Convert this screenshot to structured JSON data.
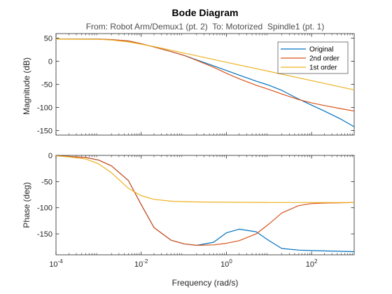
{
  "chart_data": {
    "type": "line",
    "title": "Bode Diagram",
    "subtitle": "From: Robot Arm/Demux1 (pt. 2)  To: Motorized  Spindle1 (pt. 1)",
    "xlabel": "Frequency (rad/s)",
    "x_scale": "log",
    "xlim": [
      0.0001,
      1000
    ],
    "x_ticks": [
      0.0001,
      0.01,
      1,
      100
    ],
    "x_tick_labels": [
      {
        "base": "10",
        "exp": "-4"
      },
      {
        "base": "10",
        "exp": "-2"
      },
      {
        "base": "10",
        "exp": "0"
      },
      {
        "base": "10",
        "exp": "2"
      }
    ],
    "grid": false,
    "legend": {
      "placement": "top-right",
      "entries": [
        "Original",
        "2nd order",
        "1st order"
      ]
    },
    "series_colors": {
      "Original": "#0072BD",
      "2nd order": "#D95319",
      "1st order": "#EDB120"
    },
    "panels": [
      {
        "ylabel": "Magnitude (dB)",
        "ylim": [
          -160,
          60
        ],
        "y_ticks": [
          50,
          0,
          -50,
          -100,
          -150
        ],
        "y_tick_labels": [
          "50",
          "0",
          "-50",
          "-100",
          "-150"
        ],
        "series": [
          {
            "name": "Original",
            "x": [
              0.0001,
              0.001,
              0.002,
              0.005,
              0.01,
              0.02,
              0.05,
              0.1,
              0.2,
              0.5,
              1,
              2,
              5,
              10,
              20,
              50,
              100,
              200,
              500,
              1000
            ],
            "y": [
              48,
              48,
              47,
              44,
              38,
              31,
              21,
              13,
              3,
              -10,
              -20,
              -30,
              -43,
              -52,
              -63,
              -82,
              -95,
              -108,
              -126,
              -142
            ]
          },
          {
            "name": "2nd order",
            "x": [
              0.0001,
              0.001,
              0.002,
              0.005,
              0.01,
              0.02,
              0.05,
              0.1,
              0.2,
              0.5,
              1,
              2,
              5,
              10,
              20,
              50,
              100,
              200,
              500,
              1000
            ],
            "y": [
              48,
              48,
              47,
              44,
              38,
              31,
              21,
              13,
              2,
              -13,
              -26,
              -38,
              -52,
              -61,
              -71,
              -83,
              -90,
              -96,
              -103,
              -108
            ]
          },
          {
            "name": "1st order",
            "x": [
              0.0001,
              0.001,
              0.002,
              0.005,
              0.01,
              0.02,
              0.05,
              0.1,
              1,
              10,
              100,
              1000
            ],
            "y": [
              48,
              47.5,
              46,
              42,
              37,
              32,
              24,
              18,
              -2,
              -22,
              -42,
              -62
            ]
          }
        ]
      },
      {
        "ylabel": "Phase (deg)",
        "ylim": [
          -190,
          0
        ],
        "y_ticks": [
          0,
          -50,
          -100,
          -150
        ],
        "y_tick_labels": [
          "0",
          "-50",
          "-100",
          "-150"
        ],
        "series": [
          {
            "name": "Original",
            "x": [
              0.0001,
              0.0002,
              0.0005,
              0.001,
              0.002,
              0.005,
              0.01,
              0.02,
              0.05,
              0.1,
              0.2,
              0.5,
              1,
              2,
              5,
              10,
              20,
              50,
              100,
              1000
            ],
            "y": [
              -1,
              -2,
              -4,
              -9,
              -20,
              -48,
              -94,
              -138,
              -162,
              -169,
              -172,
              -166,
              -148,
              -141,
              -146,
              -163,
              -178,
              -181,
              -182,
              -184
            ]
          },
          {
            "name": "2nd order",
            "x": [
              0.0001,
              0.0002,
              0.0005,
              0.001,
              0.002,
              0.005,
              0.01,
              0.02,
              0.05,
              0.1,
              0.2,
              0.5,
              1,
              2,
              5,
              10,
              20,
              50,
              100,
              200,
              500,
              1000
            ],
            "y": [
              -1,
              -2,
              -4,
              -9,
              -20,
              -48,
              -94,
              -138,
              -162,
              -169,
              -172,
              -171,
              -168,
              -163,
              -150,
              -131,
              -110,
              -96,
              -92,
              -91,
              -90.5,
              -90
            ]
          },
          {
            "name": "1st order",
            "x": [
              0.0001,
              0.0002,
              0.0005,
              0.001,
              0.002,
              0.005,
              0.01,
              0.02,
              0.05,
              0.1,
              0.2,
              1,
              10,
              1000
            ],
            "y": [
              -1,
              -3,
              -7,
              -16,
              -33,
              -63,
              -77,
              -84,
              -87.5,
              -88.5,
              -89,
              -89.5,
              -90,
              -90
            ]
          }
        ]
      }
    ]
  }
}
